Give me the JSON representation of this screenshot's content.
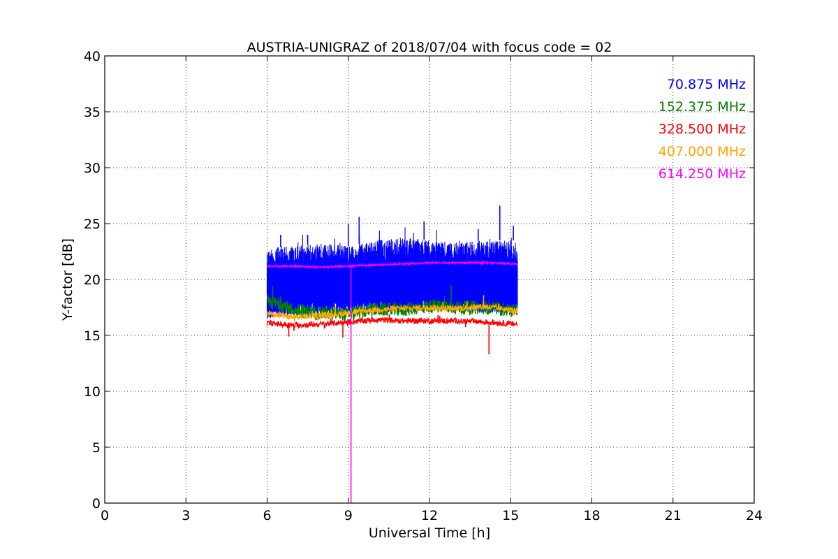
{
  "chart_data": {
    "type": "line",
    "title": "AUSTRIA-UNIGRAZ of 2018/07/04 with focus code = 02",
    "xlabel": "Universal Time [h]",
    "ylabel": "Y-factor [dB]",
    "xlim": [
      0,
      24
    ],
    "ylim": [
      0,
      40
    ],
    "xticks": [
      0,
      3,
      6,
      9,
      12,
      15,
      18,
      21,
      24
    ],
    "yticks": [
      0,
      5,
      10,
      15,
      20,
      25,
      30,
      35,
      40
    ],
    "grid": true,
    "legend_position": "top-right",
    "series": [
      {
        "name": "70.875 MHz",
        "color": "#0000ff",
        "style": "noisy-band",
        "x": [
          6.0,
          7.0,
          8.0,
          9.0,
          10.0,
          11.0,
          12.0,
          13.0,
          14.0,
          15.25
        ],
        "y_low": [
          17.5,
          17.8,
          18.0,
          18.0,
          18.2,
          18.0,
          18.3,
          18.2,
          18.0,
          18.0
        ],
        "y_high": [
          22.8,
          23.0,
          23.2,
          23.0,
          23.5,
          23.8,
          23.5,
          23.3,
          23.5,
          23.5
        ],
        "spikes": [
          [
            6.5,
            24.0
          ],
          [
            7.5,
            24.0
          ],
          [
            9.0,
            25.0
          ],
          [
            9.4,
            25.6
          ],
          [
            11.8,
            25.2
          ],
          [
            13.8,
            24.5
          ],
          [
            14.6,
            26.6
          ],
          [
            15.1,
            24.8
          ]
        ]
      },
      {
        "name": "152.375 MHz",
        "color": "#008000",
        "style": "noisy-line",
        "x": [
          6.0,
          6.5,
          7.0,
          8.0,
          9.0,
          10.0,
          11.0,
          12.0,
          13.0,
          14.0,
          15.25
        ],
        "y": [
          18.0,
          17.8,
          17.2,
          17.0,
          16.9,
          17.3,
          17.3,
          17.6,
          17.5,
          17.5,
          17.2
        ],
        "noise": 0.6,
        "spikes": [
          [
            6.2,
            19.4
          ],
          [
            12.8,
            19.5
          ]
        ]
      },
      {
        "name": "328.500 MHz",
        "color": "#ff0000",
        "style": "noisy-line",
        "x": [
          6.0,
          7.0,
          8.0,
          9.0,
          10.0,
          11.0,
          12.0,
          13.0,
          14.0,
          15.25
        ],
        "y": [
          16.1,
          15.9,
          16.0,
          16.2,
          16.4,
          16.3,
          16.3,
          16.3,
          16.2,
          16.0
        ],
        "noise": 0.25,
        "spikes": [
          [
            6.8,
            14.9
          ],
          [
            8.8,
            14.8
          ],
          [
            14.2,
            13.3
          ]
        ]
      },
      {
        "name": "407.000 MHz",
        "color": "#ffa500",
        "style": "noisy-line",
        "x": [
          6.0,
          7.0,
          8.0,
          9.0,
          10.0,
          11.0,
          12.0,
          13.0,
          14.0,
          15.25
        ],
        "y": [
          17.0,
          16.6,
          16.8,
          17.0,
          17.3,
          17.4,
          17.5,
          17.4,
          17.6,
          17.2
        ],
        "noise": 0.25,
        "spikes": [
          [
            12.5,
            18.0
          ],
          [
            14.0,
            18.6
          ]
        ]
      },
      {
        "name": "614.250 MHz",
        "color": "#ff00ff",
        "style": "noisy-line",
        "x": [
          6.0,
          7.0,
          8.0,
          9.0,
          10.0,
          11.0,
          12.0,
          13.0,
          14.0,
          15.25
        ],
        "y": [
          21.2,
          21.2,
          21.1,
          21.2,
          21.3,
          21.4,
          21.5,
          21.5,
          21.5,
          21.4
        ],
        "noise": 0.08,
        "spikes": [
          [
            9.1,
            0.0
          ]
        ]
      }
    ]
  }
}
